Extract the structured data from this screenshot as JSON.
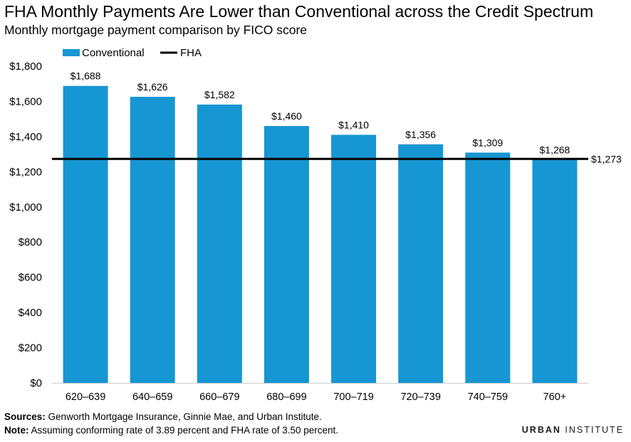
{
  "title": "FHA Monthly Payments Are Lower than Conventional across the Credit Spectrum",
  "subtitle": "Monthly mortgage payment comparison by FICO score",
  "footer": {
    "sources_label": "Sources:",
    "sources_text": "Genworth Mortgage Insurance, Ginnie Mae, and Urban Institute.",
    "note_label": "Note:",
    "note_text": "Assuming conforming rate of 3.89 percent and FHA rate of 3.50 percent."
  },
  "brand": {
    "strong": "URBAN",
    "rest": "INSTITUTE"
  },
  "colors": {
    "bar": "#1696d2",
    "line": "#000000",
    "axis": "#cccccc"
  },
  "chart_data": {
    "type": "bar",
    "categories": [
      "620–639",
      "640–659",
      "660–679",
      "680–699",
      "700–719",
      "720–739",
      "740–759",
      "760+"
    ],
    "series": [
      {
        "name": "Conventional",
        "values": [
          1688,
          1626,
          1582,
          1460,
          1410,
          1356,
          1309,
          1268
        ],
        "labels": [
          "$1,688",
          "$1,626",
          "$1,582",
          "$1,460",
          "$1,410",
          "$1,356",
          "$1,309",
          "$1,268"
        ]
      }
    ],
    "reference_line": {
      "name": "FHA",
      "value": 1273,
      "label": "$1,273"
    },
    "ylim": [
      0,
      1800
    ],
    "yticks": [
      0,
      200,
      400,
      600,
      800,
      1000,
      1200,
      1400,
      1600,
      1800
    ],
    "ytick_labels": [
      "$0",
      "$200",
      "$400",
      "$600",
      "$800",
      "$1,000",
      "$1,200",
      "$1,400",
      "$1,600",
      "$1,800"
    ],
    "legend": {
      "position": "top-left",
      "entries": [
        "Conventional",
        "FHA"
      ]
    },
    "grid": false
  }
}
